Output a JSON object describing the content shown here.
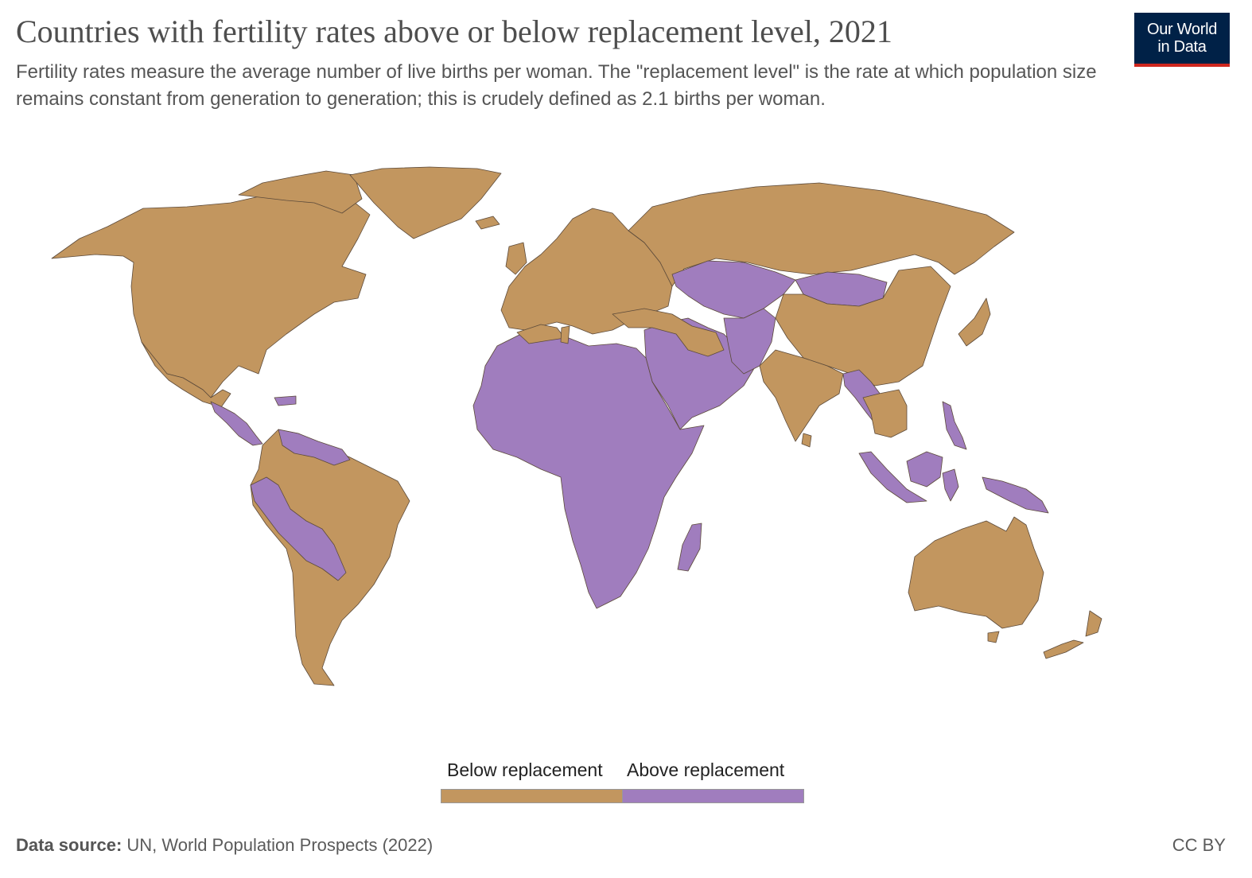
{
  "header": {
    "title": "Countries with fertility rates above or below replacement level, 2021",
    "subtitle": "Fertility rates measure the average number of live births per woman. The \"replacement level\" is the rate at which population size remains constant from generation to generation; this is crudely defined as 2.1 births per woman."
  },
  "logo": {
    "line1": "Our World",
    "line2": "in Data"
  },
  "legend": {
    "categories": [
      {
        "label": "Below replacement",
        "color": "#c2965f"
      },
      {
        "label": "Above replacement",
        "color": "#a07dbe"
      }
    ]
  },
  "map": {
    "below_color": "#c2965f",
    "above_color": "#a07dbe",
    "border_color": "#5c4a3a",
    "regions_below_replacement": [
      "North America",
      "South America (south & east)",
      "Europe",
      "Russia",
      "China",
      "India",
      "Australia",
      "New Zealand"
    ],
    "regions_above_replacement": [
      "Africa",
      "Middle East",
      "Central Asia",
      "Andean South America",
      "Central America",
      "Southeast Asia (parts)",
      "Papua New Guinea"
    ]
  },
  "footer": {
    "source_label": "Data source:",
    "source_text": " UN, World Population Prospects (2022)",
    "license": "CC BY"
  }
}
